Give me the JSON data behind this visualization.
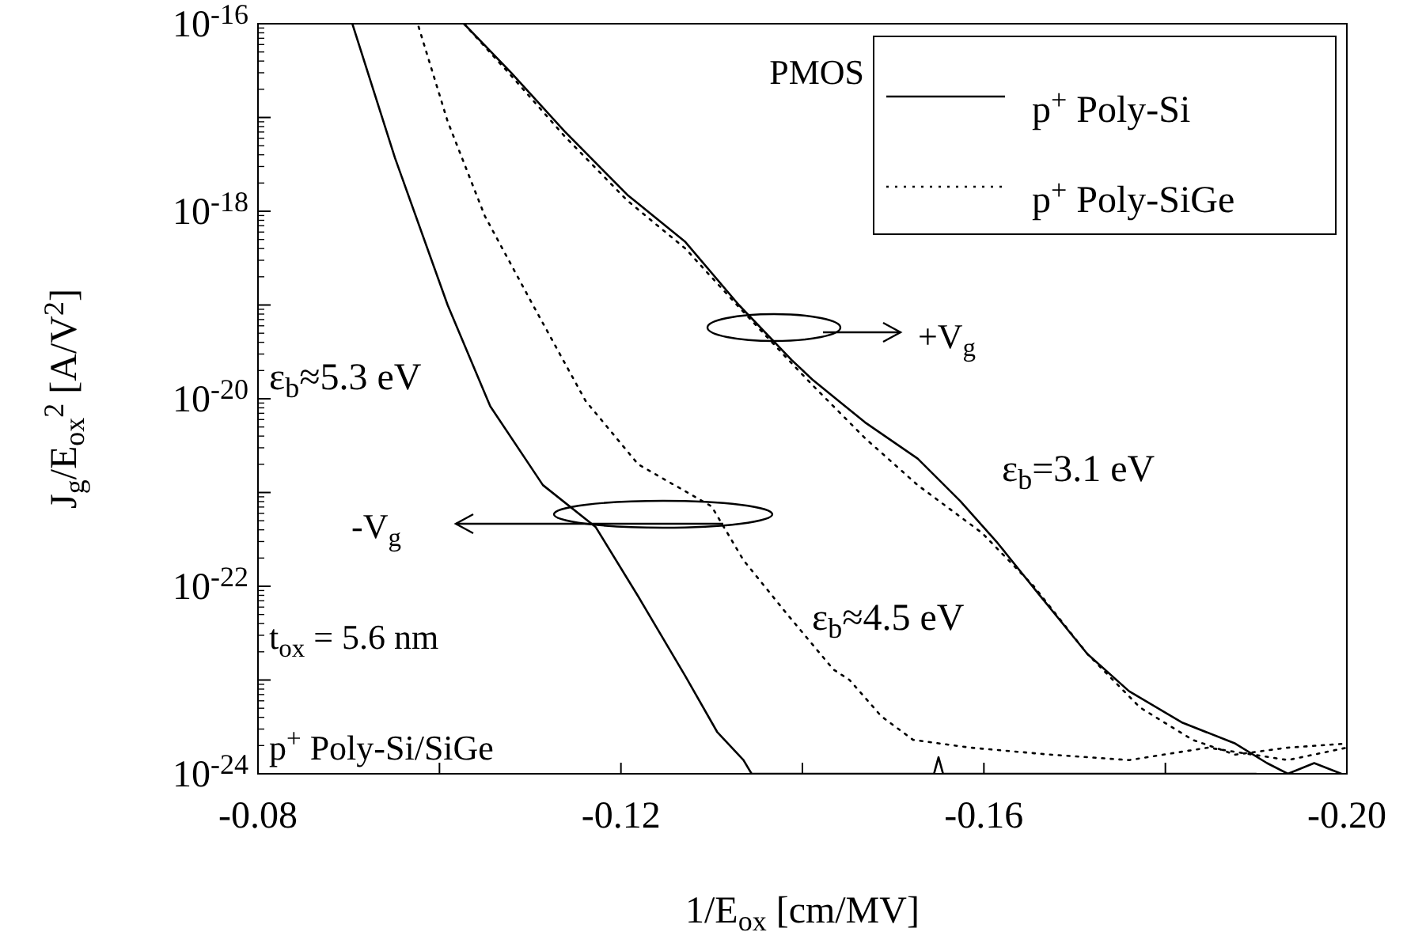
{
  "chart_data": {
    "type": "line",
    "xlabel": "1/E$_{ox}$ [cm/MV]",
    "ylabel": "J$_{g}$/E$_{ox}$$^{2}$ [A/V$^{2}$]",
    "legend_title": "PMOS",
    "legend": "top right",
    "log": "y",
    "grid": false,
    "xlim": [
      -0.08,
      -0.2
    ],
    "xticks": [
      {
        "value": -0.08,
        "label": "-0.08"
      },
      {
        "value": -0.1,
        "label": null
      },
      {
        "value": -0.12,
        "label": "-0.12"
      },
      {
        "value": -0.14,
        "label": null
      },
      {
        "value": -0.16,
        "label": "-0.16"
      },
      {
        "value": -0.18,
        "label": null
      },
      {
        "value": -0.2,
        "label": "-0.20"
      }
    ],
    "ylim": [
      1e-24,
      1e-16
    ],
    "yticks": [
      {
        "value": 1e-24,
        "label": "10$^{-24}$"
      },
      {
        "value": 1e-23,
        "label": null
      },
      {
        "value": 1e-22,
        "label": "10$^{-22}$"
      },
      {
        "value": 1e-21,
        "label": null
      },
      {
        "value": 1e-20,
        "label": "10$^{-20}$"
      },
      {
        "value": 1e-19,
        "label": null
      },
      {
        "value": 1e-18,
        "label": "10$^{-18}$"
      },
      {
        "value": 1e-17,
        "label": null
      },
      {
        "value": 1e-16,
        "label": "10$^{-16}$"
      }
    ],
    "series": [
      {
        "name": "p$^{+}$ Poly-Si",
        "color": "#000000",
        "line_style": "solid",
        "x": [
          -0.1027,
          -0.1079,
          -0.1138,
          -0.1207,
          -0.1271,
          -0.133,
          -0.1388,
          -0.1411,
          -0.1469,
          -0.1527,
          -0.1574,
          -0.1615,
          -0.1662,
          -0.1714,
          -0.176,
          -0.1819,
          -0.1877,
          -0.1912,
          -0.1935,
          -0.1964,
          -0.1994
        ],
        "values": [
          1e-16,
          3e-17,
          7.1e-18,
          1.5e-18,
          4.7e-19,
          1e-19,
          2.6e-20,
          1.6e-20,
          5.6e-21,
          2.3e-21,
          8.1e-22,
          2.9e-22,
          7.9e-23,
          1.9e-23,
          7.6e-24,
          3.5e-24,
          2.1e-24,
          1.3e-24,
          1e-24,
          1.3e-24,
          1e-24
        ]
      },
      {
        "name": "p$^{+}$ Poly-SiGe",
        "color": "#000000",
        "line_style": "dotted",
        "x": [
          -0.1027,
          -0.1079,
          -0.1138,
          -0.1207,
          -0.1271,
          -0.133,
          -0.1388,
          -0.1411,
          -0.1469,
          -0.1527,
          -0.1598,
          -0.1655,
          -0.1714,
          -0.1772,
          -0.183,
          -0.1877,
          -0.1935,
          -0.2
        ],
        "values": [
          1e-16,
          2.8e-17,
          6.3e-18,
          1.3e-18,
          4e-19,
          9.5e-20,
          2.4e-20,
          1.4e-20,
          3.8e-21,
          1.2e-21,
          3.7e-22,
          1e-22,
          1.9e-23,
          5.1e-24,
          2.3e-24,
          1.6e-24,
          1.9e-24,
          2.1e-24
        ]
      },
      {
        "color": "#000000",
        "line_style": "solid",
        "x": [
          -0.0904,
          -0.0951,
          -0.1009,
          -0.1056,
          -0.1114,
          -0.1172,
          -0.1219,
          -0.1271,
          -0.1306,
          -0.1335,
          -0.1344,
          -0.1545,
          -0.155,
          -0.1555,
          -0.19
        ],
        "values": [
          1e-16,
          3.7e-18,
          1e-19,
          8.3e-21,
          1.2e-21,
          4.3e-22,
          7.8e-23,
          1.1e-23,
          2.8e-24,
          1.4e-24,
          1e-24,
          1e-24,
          1.5e-24,
          1e-24,
          1e-24
        ]
      },
      {
        "color": "#000000",
        "line_style": "dotted",
        "x": [
          -0.0977,
          -0.1009,
          -0.105,
          -0.1103,
          -0.1161,
          -0.1219,
          -0.13,
          -0.1335,
          -0.1382,
          -0.1434,
          -0.1452,
          -0.1487,
          -0.1522,
          -0.1585,
          -0.1673,
          -0.176,
          -0.1847,
          -0.1935,
          -0.2
        ],
        "values": [
          9.3e-17,
          9.1e-18,
          8.9e-19,
          1e-19,
          9.5e-21,
          2e-21,
          7.1e-22,
          1.9e-22,
          5.2e-23,
          1.3e-23,
          1e-23,
          4.1e-24,
          2.3e-24,
          1.9e-24,
          1.6e-24,
          1.4e-24,
          1.9e-24,
          1.4e-24,
          1.9e-24
        ]
      }
    ],
    "annotations": [
      "ε$_{b}$≈5.3 eV",
      "-V$_{g}$",
      "+V$_{g}$",
      "ε$_{b}$=3.1 eV",
      "ε$_{b}$≈4.5 eV",
      "t$_{ox}$ = 5.6 nm",
      "p$^{+}$ Poly-Si/SiGe"
    ]
  }
}
